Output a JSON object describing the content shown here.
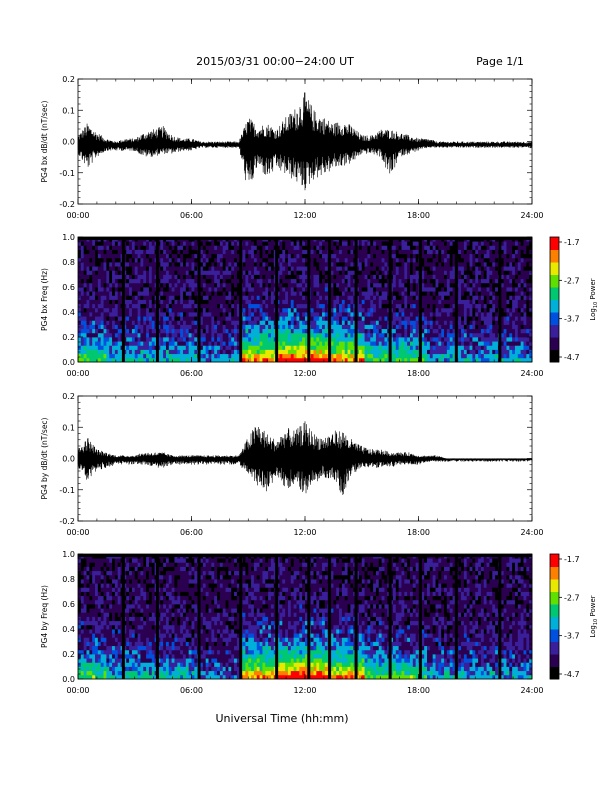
{
  "header": {
    "date_range": "2015/03/31  00:00−24:00 UT",
    "page": "Page 1/1"
  },
  "footer": {
    "xlabel": "Universal Time (hh:mm)"
  },
  "colorbar": {
    "ticks": [
      "-1.7",
      "-2.7",
      "-3.7",
      "-4.7"
    ],
    "label_prefix": "Log",
    "label_sub": "10",
    "label_suffix": " Power",
    "colors": [
      "#000000",
      "#2b0050",
      "#3a1f9a",
      "#0050e0",
      "#00b0d8",
      "#00c870",
      "#60e000",
      "#e8e800",
      "#ff8000",
      "#ff0000"
    ]
  },
  "chart_data": [
    {
      "type": "line",
      "ylabel": "PG4 bx dB/dt (nT/sec)",
      "xlim": [
        "00:00",
        "24:00"
      ],
      "xticks": [
        "00:00",
        "06:00",
        "12:00",
        "18:00",
        "24:00"
      ],
      "ylim": [
        -0.2,
        0.2
      ],
      "yticks": [
        "-0.2",
        "-0.1",
        "0.0",
        "0.1",
        "0.2"
      ],
      "baseline": -0.01,
      "series": [
        {
          "x_hours": [
            0.0,
            0.5,
            1.0,
            1.5,
            2.0,
            2.5,
            3.0,
            3.5,
            4.0,
            4.5,
            5.0,
            5.5,
            6.0,
            6.5,
            7.0,
            7.5,
            8.0,
            8.5,
            9.0,
            9.5,
            10.0,
            10.5,
            11.0,
            11.5,
            12.0,
            12.5,
            13.0,
            13.5,
            14.0,
            14.5,
            15.0,
            15.5,
            16.0,
            16.5,
            17.0,
            17.5,
            18.0,
            18.5,
            19.0,
            19.5,
            20.0,
            20.5,
            21.0,
            21.5,
            22.0,
            22.5,
            23.0,
            23.5,
            24.0
          ],
          "y_max": [
            0.02,
            0.06,
            0.03,
            0.01,
            0.0,
            0.01,
            0.01,
            0.03,
            0.04,
            0.05,
            0.02,
            0.01,
            0.01,
            0.0,
            0.0,
            0.0,
            0.0,
            0.0,
            0.08,
            0.05,
            0.06,
            0.04,
            0.08,
            0.11,
            0.16,
            0.1,
            0.08,
            0.06,
            0.07,
            0.05,
            0.02,
            0.02,
            0.04,
            0.04,
            0.03,
            0.02,
            0.01,
            0.01,
            0.0,
            0.0,
            0.0,
            0.0,
            0.0,
            0.0,
            0.0,
            0.0,
            0.0,
            0.0,
            0.0
          ],
          "y_min": [
            -0.04,
            -0.09,
            -0.05,
            -0.03,
            -0.03,
            -0.03,
            -0.03,
            -0.05,
            -0.05,
            -0.04,
            -0.04,
            -0.03,
            -0.03,
            -0.02,
            -0.02,
            -0.02,
            -0.02,
            -0.02,
            -0.17,
            -0.08,
            -0.12,
            -0.09,
            -0.11,
            -0.13,
            -0.16,
            -0.12,
            -0.11,
            -0.09,
            -0.08,
            -0.07,
            -0.04,
            -0.04,
            -0.05,
            -0.12,
            -0.05,
            -0.04,
            -0.03,
            -0.02,
            -0.02,
            -0.02,
            -0.02,
            -0.02,
            -0.02,
            -0.02,
            -0.02,
            -0.02,
            -0.02,
            -0.02,
            -0.02
          ]
        }
      ]
    },
    {
      "type": "heatmap",
      "ylabel": "PG4 bx Freq (Hz)",
      "xlim": [
        "00:00",
        "24:00"
      ],
      "xticks": [
        "00:00",
        "06:00",
        "12:00",
        "18:00",
        "24:00"
      ],
      "ylim": [
        0.0,
        1.0
      ],
      "yticks": [
        "0.0",
        "0.2",
        "0.4",
        "0.6",
        "0.8",
        "1.0"
      ],
      "zlim": [
        -4.7,
        -1.7
      ],
      "gap_hours": [
        2.4,
        4.2,
        6.4,
        8.6,
        10.5,
        12.2,
        13.3,
        14.7,
        16.5,
        18.1,
        20.0,
        22.3
      ]
    },
    {
      "type": "line",
      "ylabel": "PG4 by dB/dt (nT/sec)",
      "xlim": [
        "00:00",
        "24:00"
      ],
      "xticks": [
        "00:00",
        "06:00",
        "12:00",
        "18:00",
        "24:00"
      ],
      "ylim": [
        -0.2,
        0.2
      ],
      "yticks": [
        "-0.2",
        "-0.1",
        "0.0",
        "0.1",
        "0.2"
      ],
      "baseline": 0.0,
      "series": [
        {
          "x_hours": [
            0.0,
            0.5,
            1.0,
            1.5,
            2.0,
            2.5,
            3.0,
            3.5,
            4.0,
            4.5,
            5.0,
            5.5,
            6.0,
            6.5,
            7.0,
            7.5,
            8.0,
            8.5,
            9.0,
            9.5,
            10.0,
            10.5,
            11.0,
            11.5,
            12.0,
            12.5,
            13.0,
            13.5,
            14.0,
            14.5,
            15.0,
            15.5,
            16.0,
            16.5,
            17.0,
            17.5,
            18.0,
            18.5,
            19.0,
            19.5,
            20.0,
            20.5,
            21.0,
            21.5,
            22.0,
            22.5,
            23.0,
            23.5,
            24.0
          ],
          "y_max": [
            0.03,
            0.07,
            0.03,
            0.02,
            0.01,
            0.01,
            0.01,
            0.02,
            0.02,
            0.02,
            0.01,
            0.01,
            0.01,
            0.01,
            0.01,
            0.01,
            0.01,
            0.01,
            0.07,
            0.12,
            0.08,
            0.06,
            0.1,
            0.09,
            0.12,
            0.08,
            0.07,
            0.09,
            0.09,
            0.06,
            0.04,
            0.03,
            0.03,
            0.02,
            0.02,
            0.02,
            0.01,
            0.01,
            0.01,
            0.0,
            0.0,
            0.0,
            0.0,
            0.0,
            0.0,
            0.0,
            0.0,
            0.0,
            0.0
          ],
          "y_min": [
            -0.03,
            -0.08,
            -0.04,
            -0.03,
            -0.02,
            -0.02,
            -0.02,
            -0.02,
            -0.03,
            -0.03,
            -0.02,
            -0.02,
            -0.02,
            -0.02,
            -0.02,
            -0.02,
            -0.02,
            -0.02,
            -0.05,
            -0.09,
            -0.11,
            -0.06,
            -0.1,
            -0.08,
            -0.13,
            -0.08,
            -0.06,
            -0.07,
            -0.12,
            -0.05,
            -0.03,
            -0.03,
            -0.03,
            -0.03,
            -0.02,
            -0.02,
            -0.02,
            -0.01,
            -0.01,
            -0.01,
            -0.01,
            -0.01,
            -0.01,
            -0.01,
            -0.01,
            -0.01,
            -0.01,
            -0.01,
            -0.01
          ]
        }
      ]
    },
    {
      "type": "heatmap",
      "ylabel": "PG4 by Freq (Hz)",
      "xlim": [
        "00:00",
        "24:00"
      ],
      "xticks": [
        "00:00",
        "06:00",
        "12:00",
        "18:00",
        "24:00"
      ],
      "ylim": [
        0.0,
        1.0
      ],
      "yticks": [
        "0.0",
        "0.2",
        "0.4",
        "0.6",
        "0.8",
        "1.0"
      ],
      "zlim": [
        -4.7,
        -1.7
      ],
      "gap_hours": [
        2.4,
        4.2,
        6.4,
        8.6,
        10.5,
        12.2,
        13.3,
        14.7,
        16.5,
        18.1,
        20.0,
        22.3
      ]
    }
  ]
}
